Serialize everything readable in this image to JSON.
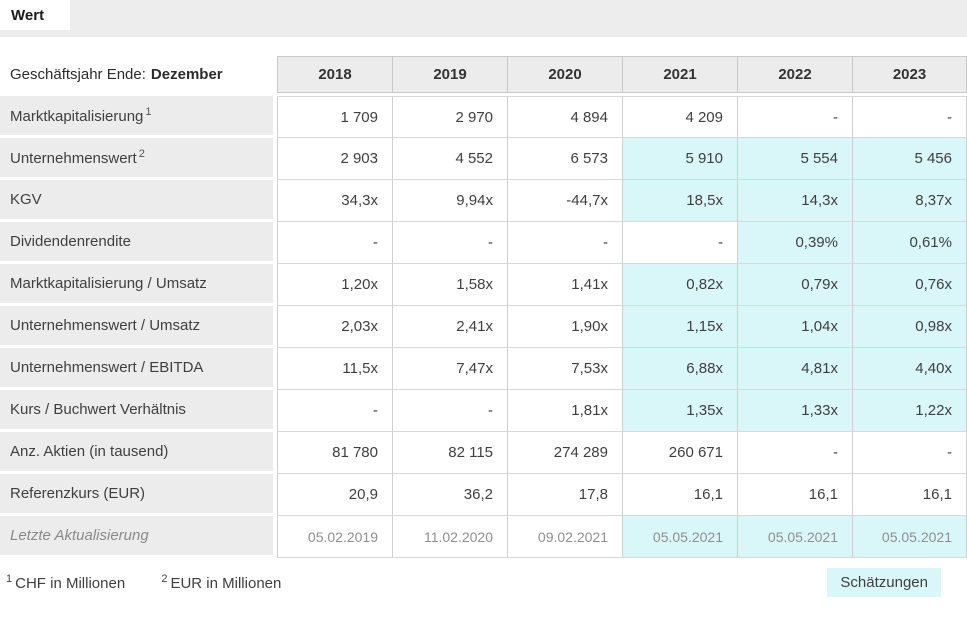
{
  "title": "Wert",
  "table": {
    "header": {
      "label_prefix": "Geschäftsjahr Ende:",
      "label_bold": "Dezember",
      "years": [
        "2018",
        "2019",
        "2020",
        "2021",
        "2022",
        "2023"
      ]
    },
    "rows": [
      {
        "label": "Marktkapitalisierung",
        "sup": "1",
        "values": [
          "1 709",
          "2 970",
          "4 894",
          "4 209",
          "-",
          "-"
        ],
        "est": [
          false,
          false,
          false,
          false,
          false,
          false
        ]
      },
      {
        "label": "Unternehmenswert",
        "sup": "2",
        "values": [
          "2 903",
          "4 552",
          "6 573",
          "5 910",
          "5 554",
          "5 456"
        ],
        "est": [
          false,
          false,
          false,
          true,
          true,
          true
        ]
      },
      {
        "label": "KGV",
        "values": [
          "34,3x",
          "9,94x",
          "-44,7x",
          "18,5x",
          "14,3x",
          "8,37x"
        ],
        "est": [
          false,
          false,
          false,
          true,
          true,
          true
        ]
      },
      {
        "label": "Dividendenrendite",
        "values": [
          "-",
          "-",
          "-",
          "-",
          "0,39%",
          "0,61%"
        ],
        "est": [
          false,
          false,
          false,
          false,
          true,
          true
        ]
      },
      {
        "label": "Marktkapitalisierung / Umsatz",
        "values": [
          "1,20x",
          "1,58x",
          "1,41x",
          "0,82x",
          "0,79x",
          "0,76x"
        ],
        "est": [
          false,
          false,
          false,
          true,
          true,
          true
        ]
      },
      {
        "label": "Unternehmenswert / Umsatz",
        "values": [
          "2,03x",
          "2,41x",
          "1,90x",
          "1,15x",
          "1,04x",
          "0,98x"
        ],
        "est": [
          false,
          false,
          false,
          true,
          true,
          true
        ]
      },
      {
        "label": "Unternehmenswert / EBITDA",
        "values": [
          "11,5x",
          "7,47x",
          "7,53x",
          "6,88x",
          "4,81x",
          "4,40x"
        ],
        "est": [
          false,
          false,
          false,
          true,
          true,
          true
        ]
      },
      {
        "label": "Kurs / Buchwert Verhältnis",
        "values": [
          "-",
          "-",
          "1,81x",
          "1,35x",
          "1,33x",
          "1,22x"
        ],
        "est": [
          false,
          false,
          false,
          true,
          true,
          true
        ]
      },
      {
        "label": "Anz. Aktien (in tausend)",
        "values": [
          "81 780",
          "82 115",
          "274 289",
          "260 671",
          "-",
          "-"
        ],
        "est": [
          false,
          false,
          false,
          false,
          false,
          false
        ]
      },
      {
        "label": "Referenzkurs (EUR)",
        "values": [
          "20,9",
          "36,2",
          "17,8",
          "16,1",
          "16,1",
          "16,1"
        ],
        "est": [
          false,
          false,
          false,
          false,
          false,
          false
        ]
      },
      {
        "label": "Letzte Aktualisierung",
        "muted": true,
        "values": [
          "05.02.2019",
          "11.02.2020",
          "09.02.2021",
          "05.05.2021",
          "05.05.2021",
          "05.05.2021"
        ],
        "est": [
          false,
          false,
          false,
          true,
          true,
          true
        ]
      }
    ]
  },
  "footnotes": [
    {
      "sup": "1",
      "text": "CHF in Millionen"
    },
    {
      "sup": "2",
      "text": "EUR in Millionen"
    }
  ],
  "legend": {
    "estimates_label": "Schätzungen"
  },
  "colors": {
    "estimate_bg": "#d9f6f9",
    "cell_bg": "#ececec",
    "bar_bg": "#ededed"
  }
}
